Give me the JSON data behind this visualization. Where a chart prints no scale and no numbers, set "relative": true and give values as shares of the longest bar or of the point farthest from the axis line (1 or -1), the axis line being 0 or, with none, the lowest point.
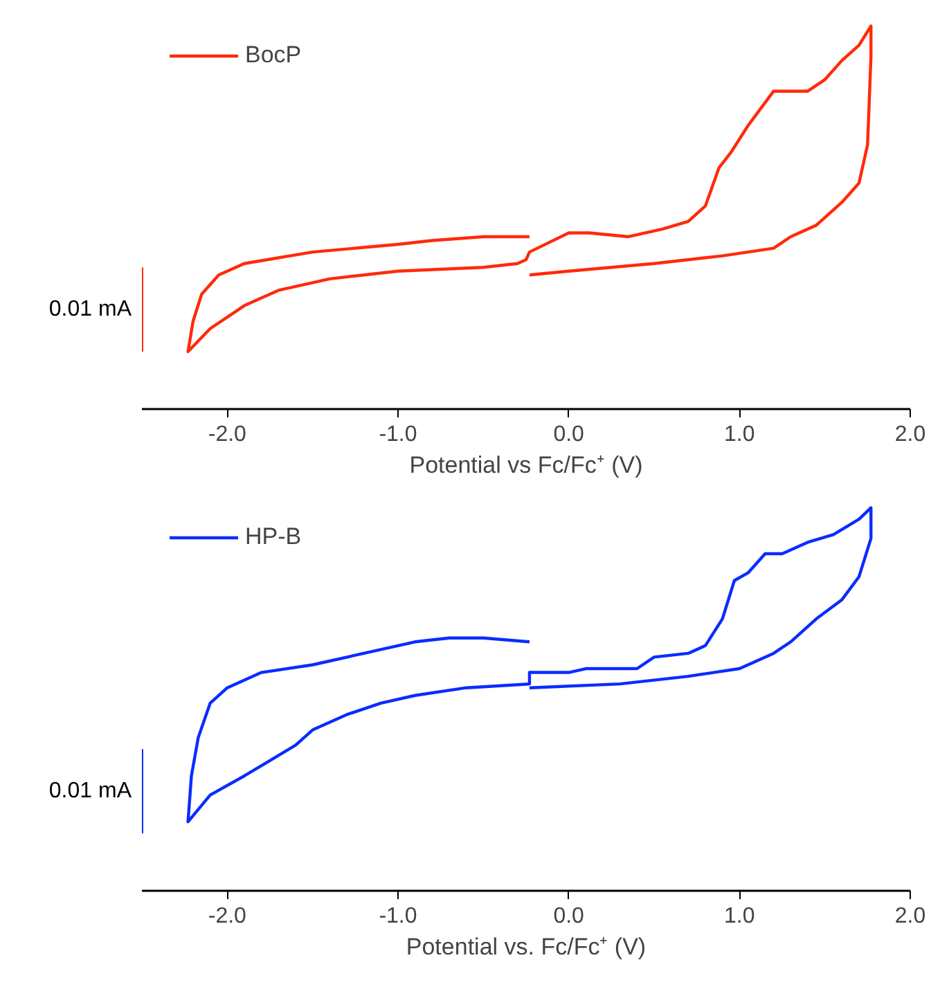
{
  "chart_data": [
    {
      "type": "line",
      "relative": true,
      "xlabel": "Potential vs Fc/Fc⁺ (V)",
      "xlim": [
        -2.5,
        2.0
      ],
      "xticks": [
        {
          "value": -2,
          "label": "-2.0"
        },
        {
          "value": -1,
          "label": "-1.0"
        },
        {
          "value": 0,
          "label": "0.0"
        },
        {
          "value": 1,
          "label": "1.0"
        },
        {
          "value": 2,
          "label": "2.0"
        }
      ],
      "grid": false,
      "legend": "top left",
      "tick_labels": "x",
      "annotations": [
        "0.01 mA"
      ],
      "series": [
        {
          "name": "BocP",
          "color": "#ff2a0a",
          "x": [
            -0.23,
            -0.5,
            -0.8,
            -1.0,
            -1.5,
            -1.9,
            -2.05,
            -2.15,
            -2.2,
            -2.23,
            -2.1,
            -1.9,
            -1.7,
            -1.4,
            -1.0,
            -0.5,
            -0.3,
            -0.25,
            -0.23,
            0,
            0.12,
            0.35,
            0.55,
            0.7,
            0.8,
            0.88,
            0.95,
            1.05,
            1.1,
            1.2,
            1.3,
            1.4,
            1.5,
            1.6,
            1.7,
            1.77,
            1.77,
            1.75,
            1.7,
            1.6,
            1.45,
            1.3,
            1.2,
            1.05,
            0.9,
            0.5,
            0,
            -0.23
          ],
          "values": [
            0.45,
            0.45,
            0.44,
            0.43,
            0.41,
            0.38,
            0.35,
            0.3,
            0.23,
            0.15,
            0.21,
            0.27,
            0.31,
            0.34,
            0.36,
            0.37,
            0.38,
            0.39,
            0.41,
            0.46,
            0.46,
            0.45,
            0.47,
            0.49,
            0.53,
            0.63,
            0.67,
            0.74,
            0.77,
            0.83,
            0.83,
            0.83,
            0.86,
            0.91,
            0.95,
            1,
            0.92,
            0.69,
            0.59,
            0.54,
            0.48,
            0.45,
            0.42,
            0.41,
            0.4,
            0.38,
            0.36,
            0.35
          ]
        }
      ]
    },
    {
      "type": "line",
      "relative": true,
      "xlabel": "Potential vs. Fc/Fc⁺ (V)",
      "xlim": [
        -2.5,
        2.0
      ],
      "xticks": [
        {
          "value": -2,
          "label": "-2.0"
        },
        {
          "value": -1,
          "label": "-1.0"
        },
        {
          "value": 0,
          "label": "0.0"
        },
        {
          "value": 1,
          "label": "1.0"
        },
        {
          "value": 2,
          "label": "2.0"
        }
      ],
      "grid": false,
      "legend": "top left",
      "tick_labels": "x",
      "annotations": [
        "0.01 mA"
      ],
      "series": [
        {
          "name": "HP-B",
          "color": "#0a2cff",
          "x": [
            -0.23,
            -0.5,
            -0.7,
            -0.9,
            -1.2,
            -1.5,
            -1.8,
            -2.0,
            -2.1,
            -2.17,
            -2.21,
            -2.23,
            -2.1,
            -1.9,
            -1.75,
            -1.6,
            -1.5,
            -1.3,
            -1.1,
            -0.9,
            -0.6,
            -0.23,
            -0.23,
            0,
            0.1,
            0.4,
            0.5,
            0.7,
            0.8,
            0.9,
            0.97,
            1.05,
            1.15,
            1.25,
            1.4,
            1.55,
            1.7,
            1.77,
            1.77,
            1.7,
            1.6,
            1.45,
            1.3,
            1.2,
            1.0,
            0.7,
            0.3,
            -0.23
          ],
          "values": [
            0.65,
            0.66,
            0.66,
            0.65,
            0.62,
            0.59,
            0.57,
            0.53,
            0.49,
            0.4,
            0.3,
            0.18,
            0.25,
            0.3,
            0.34,
            0.38,
            0.42,
            0.46,
            0.49,
            0.51,
            0.53,
            0.54,
            0.57,
            0.57,
            0.58,
            0.58,
            0.61,
            0.62,
            0.64,
            0.71,
            0.81,
            0.83,
            0.88,
            0.88,
            0.91,
            0.93,
            0.97,
            1,
            0.92,
            0.82,
            0.76,
            0.71,
            0.65,
            0.62,
            0.58,
            0.56,
            0.54,
            0.53
          ]
        }
      ]
    }
  ]
}
